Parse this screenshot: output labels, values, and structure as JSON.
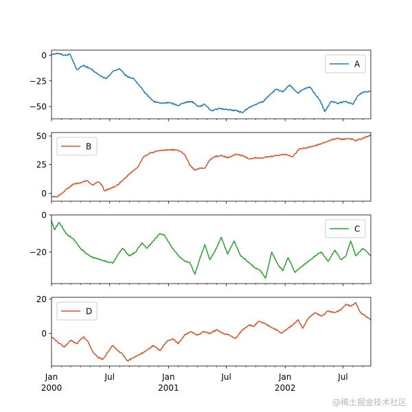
{
  "chart_data": {
    "type": "line",
    "layout": "4 stacked subplots sharing a date x-axis",
    "x_range": [
      "2000-01-01",
      "2002-09-26"
    ],
    "x_major_ticks": [
      {
        "date": "2000-01-01",
        "line1": "Jan",
        "line2": "2000"
      },
      {
        "date": "2000-07-01",
        "line1": "Jul",
        "line2": ""
      },
      {
        "date": "2001-01-01",
        "line1": "Jan",
        "line2": "2001"
      },
      {
        "date": "2001-07-01",
        "line1": "Jul",
        "line2": ""
      },
      {
        "date": "2002-01-01",
        "line1": "Jan",
        "line2": "2002"
      },
      {
        "date": "2002-07-01",
        "line1": "Jul",
        "line2": ""
      }
    ],
    "panels": [
      {
        "series": "A",
        "color": "#1f77b4",
        "legend": "top-right",
        "ylim": [
          -62,
          5
        ],
        "yticks": [
          0,
          -25,
          -50
        ],
        "ytick_labels": [
          "0",
          "−25",
          "−50"
        ],
        "points": [
          [
            "2000-01-01",
            1
          ],
          [
            "2000-01-20",
            2
          ],
          [
            "2000-02-10",
            0
          ],
          [
            "2000-02-28",
            1
          ],
          [
            "2000-03-20",
            -14
          ],
          [
            "2000-04-10",
            -10
          ],
          [
            "2000-05-01",
            -13
          ],
          [
            "2000-06-01",
            -20
          ],
          [
            "2000-06-20",
            -23
          ],
          [
            "2000-07-10",
            -16
          ],
          [
            "2000-08-01",
            -13
          ],
          [
            "2000-08-20",
            -20
          ],
          [
            "2000-09-15",
            -23
          ],
          [
            "2000-10-15",
            -35
          ],
          [
            "2000-11-15",
            -45
          ],
          [
            "2000-12-10",
            -47
          ],
          [
            "2001-01-01",
            -46
          ],
          [
            "2001-02-01",
            -49
          ],
          [
            "2001-02-20",
            -46
          ],
          [
            "2001-03-15",
            -45
          ],
          [
            "2001-04-05",
            -50
          ],
          [
            "2001-04-25",
            -48
          ],
          [
            "2001-05-15",
            -54
          ],
          [
            "2001-06-10",
            -52
          ],
          [
            "2001-07-05",
            -53
          ],
          [
            "2001-08-01",
            -54
          ],
          [
            "2001-08-20",
            -56
          ],
          [
            "2001-09-10",
            -51
          ],
          [
            "2001-10-01",
            -48
          ],
          [
            "2001-10-25",
            -45
          ],
          [
            "2001-11-15",
            -38
          ],
          [
            "2001-12-05",
            -33
          ],
          [
            "2001-12-25",
            -36
          ],
          [
            "2002-01-15",
            -29
          ],
          [
            "2002-02-10",
            -37
          ],
          [
            "2002-03-01",
            -33
          ],
          [
            "2002-03-20",
            -31
          ],
          [
            "2002-04-05",
            -38
          ],
          [
            "2002-04-20",
            -44
          ],
          [
            "2002-05-05",
            -55
          ],
          [
            "2002-05-25",
            -45
          ],
          [
            "2002-06-15",
            -47
          ],
          [
            "2002-07-10",
            -45
          ],
          [
            "2002-08-01",
            -48
          ],
          [
            "2002-08-15",
            -40
          ],
          [
            "2002-09-01",
            -36
          ],
          [
            "2002-09-26",
            -35
          ]
        ]
      },
      {
        "series": "B",
        "color": "#d9532b",
        "legend": "top-left",
        "ylim": [
          -7,
          53
        ],
        "yticks": [
          50,
          25,
          0
        ],
        "ytick_labels": [
          "50",
          "25",
          "0"
        ],
        "points": [
          [
            "2000-01-01",
            -3
          ],
          [
            "2000-01-20",
            -3
          ],
          [
            "2000-02-15",
            3
          ],
          [
            "2000-03-10",
            8
          ],
          [
            "2000-04-01",
            9
          ],
          [
            "2000-04-20",
            11
          ],
          [
            "2000-05-10",
            7
          ],
          [
            "2000-05-25",
            10
          ],
          [
            "2000-06-05",
            8
          ],
          [
            "2000-06-15",
            2
          ],
          [
            "2000-07-01",
            4
          ],
          [
            "2000-07-20",
            6
          ],
          [
            "2000-08-10",
            11
          ],
          [
            "2000-09-01",
            17
          ],
          [
            "2000-09-25",
            22
          ],
          [
            "2000-10-15",
            32
          ],
          [
            "2000-11-05",
            35
          ],
          [
            "2000-12-01",
            37
          ],
          [
            "2001-01-01",
            38
          ],
          [
            "2001-01-20",
            38
          ],
          [
            "2001-02-05",
            37
          ],
          [
            "2001-02-20",
            34
          ],
          [
            "2001-03-10",
            24
          ],
          [
            "2001-03-25",
            20
          ],
          [
            "2001-04-10",
            22
          ],
          [
            "2001-04-25",
            22
          ],
          [
            "2001-05-10",
            29
          ],
          [
            "2001-05-25",
            32
          ],
          [
            "2001-06-15",
            33
          ],
          [
            "2001-07-05",
            31
          ],
          [
            "2001-08-01",
            34
          ],
          [
            "2001-08-20",
            33
          ],
          [
            "2001-09-10",
            30
          ],
          [
            "2001-10-01",
            31
          ],
          [
            "2001-10-25",
            31
          ],
          [
            "2001-11-15",
            32
          ],
          [
            "2001-12-05",
            33
          ],
          [
            "2002-01-01",
            34
          ],
          [
            "2002-01-25",
            32
          ],
          [
            "2002-02-15",
            39
          ],
          [
            "2002-03-15",
            40
          ],
          [
            "2002-04-10",
            42
          ],
          [
            "2002-05-01",
            44
          ],
          [
            "2002-05-20",
            46
          ],
          [
            "2002-06-10",
            48
          ],
          [
            "2002-07-01",
            47
          ],
          [
            "2002-07-20",
            48
          ],
          [
            "2002-08-10",
            46
          ],
          [
            "2002-09-01",
            48
          ],
          [
            "2002-09-26",
            51
          ]
        ]
      },
      {
        "series": "C",
        "color": "#2ca02c",
        "legend": "top-right",
        "ylim": [
          -37,
          0
        ],
        "yticks": [
          0,
          -20
        ],
        "ytick_labels": [
          "0",
          "−20"
        ],
        "points": [
          [
            "2000-01-01",
            -3
          ],
          [
            "2000-01-10",
            -8
          ],
          [
            "2000-01-25",
            -4
          ],
          [
            "2000-02-15",
            -10
          ],
          [
            "2000-03-10",
            -13
          ],
          [
            "2000-04-01",
            -18
          ],
          [
            "2000-04-20",
            -21
          ],
          [
            "2000-05-10",
            -23
          ],
          [
            "2000-06-01",
            -24
          ],
          [
            "2000-06-20",
            -25
          ],
          [
            "2000-07-10",
            -26
          ],
          [
            "2000-07-25",
            -22
          ],
          [
            "2000-08-10",
            -18
          ],
          [
            "2000-09-01",
            -22
          ],
          [
            "2000-09-20",
            -20
          ],
          [
            "2000-10-10",
            -15
          ],
          [
            "2000-10-25",
            -18
          ],
          [
            "2000-11-15",
            -14
          ],
          [
            "2000-12-05",
            -10
          ],
          [
            "2000-12-20",
            -11
          ],
          [
            "2001-01-10",
            -17
          ],
          [
            "2001-02-01",
            -22
          ],
          [
            "2001-02-20",
            -25
          ],
          [
            "2001-03-10",
            -26
          ],
          [
            "2001-03-25",
            -32
          ],
          [
            "2001-04-10",
            -23
          ],
          [
            "2001-04-25",
            -16
          ],
          [
            "2001-05-10",
            -24
          ],
          [
            "2001-05-25",
            -20
          ],
          [
            "2001-06-15",
            -12
          ],
          [
            "2001-07-05",
            -21
          ],
          [
            "2001-07-25",
            -14
          ],
          [
            "2001-08-15",
            -22
          ],
          [
            "2001-09-05",
            -25
          ],
          [
            "2001-09-25",
            -28
          ],
          [
            "2001-10-15",
            -30
          ],
          [
            "2001-11-01",
            -34
          ],
          [
            "2001-11-20",
            -20
          ],
          [
            "2001-12-10",
            -27
          ],
          [
            "2001-12-25",
            -30
          ],
          [
            "2002-01-10",
            -23
          ],
          [
            "2002-02-01",
            -31
          ],
          [
            "2002-02-20",
            -28
          ],
          [
            "2002-03-15",
            -25
          ],
          [
            "2002-04-05",
            -22
          ],
          [
            "2002-04-25",
            -20
          ],
          [
            "2002-05-15",
            -25
          ],
          [
            "2002-06-05",
            -19
          ],
          [
            "2002-06-25",
            -24
          ],
          [
            "2002-07-10",
            -22
          ],
          [
            "2002-07-25",
            -14
          ],
          [
            "2002-08-10",
            -22
          ],
          [
            "2002-09-01",
            -18
          ],
          [
            "2002-09-26",
            -22
          ]
        ]
      },
      {
        "series": "D",
        "color": "#d9532b",
        "legend": "top-left",
        "ylim": [
          -19,
          21
        ],
        "yticks": [
          20,
          0
        ],
        "ytick_labels": [
          "20",
          "0"
        ],
        "points": [
          [
            "2000-01-01",
            -2
          ],
          [
            "2000-01-20",
            -5
          ],
          [
            "2000-02-10",
            -8
          ],
          [
            "2000-03-01",
            -4
          ],
          [
            "2000-03-20",
            -6
          ],
          [
            "2000-04-10",
            -2
          ],
          [
            "2000-04-25",
            -5
          ],
          [
            "2000-05-10",
            -11
          ],
          [
            "2000-05-25",
            -14
          ],
          [
            "2000-06-10",
            -15
          ],
          [
            "2000-06-25",
            -11
          ],
          [
            "2000-07-10",
            -7
          ],
          [
            "2000-07-25",
            -10
          ],
          [
            "2000-08-10",
            -12
          ],
          [
            "2000-08-25",
            -16
          ],
          [
            "2000-09-15",
            -14
          ],
          [
            "2000-10-05",
            -12
          ],
          [
            "2000-10-25",
            -10
          ],
          [
            "2000-11-15",
            -7
          ],
          [
            "2000-12-05",
            -10
          ],
          [
            "2000-12-25",
            -5
          ],
          [
            "2001-01-15",
            -3
          ],
          [
            "2001-02-01",
            -6
          ],
          [
            "2001-02-20",
            -1
          ],
          [
            "2001-03-10",
            1
          ],
          [
            "2001-04-01",
            -1
          ],
          [
            "2001-04-20",
            1
          ],
          [
            "2001-05-10",
            0
          ],
          [
            "2001-06-01",
            2
          ],
          [
            "2001-06-20",
            0
          ],
          [
            "2001-07-10",
            -1
          ],
          [
            "2001-07-30",
            -3
          ],
          [
            "2001-08-20",
            2
          ],
          [
            "2001-09-10",
            5
          ],
          [
            "2001-09-25",
            4
          ],
          [
            "2001-10-10",
            7
          ],
          [
            "2001-10-25",
            6
          ],
          [
            "2001-11-15",
            4
          ],
          [
            "2001-12-05",
            2
          ],
          [
            "2001-12-20",
            0
          ],
          [
            "2002-01-10",
            3
          ],
          [
            "2002-01-25",
            5
          ],
          [
            "2002-02-10",
            8
          ],
          [
            "2002-02-25",
            3
          ],
          [
            "2002-03-15",
            9
          ],
          [
            "2002-04-05",
            12
          ],
          [
            "2002-04-25",
            10
          ],
          [
            "2002-05-15",
            13
          ],
          [
            "2002-06-05",
            12
          ],
          [
            "2002-06-25",
            14
          ],
          [
            "2002-07-10",
            17
          ],
          [
            "2002-07-25",
            16
          ],
          [
            "2002-08-10",
            18
          ],
          [
            "2002-08-25",
            12
          ],
          [
            "2002-09-10",
            10
          ],
          [
            "2002-09-26",
            8
          ]
        ]
      }
    ]
  },
  "watermark": "@稀土掘金技术社区"
}
